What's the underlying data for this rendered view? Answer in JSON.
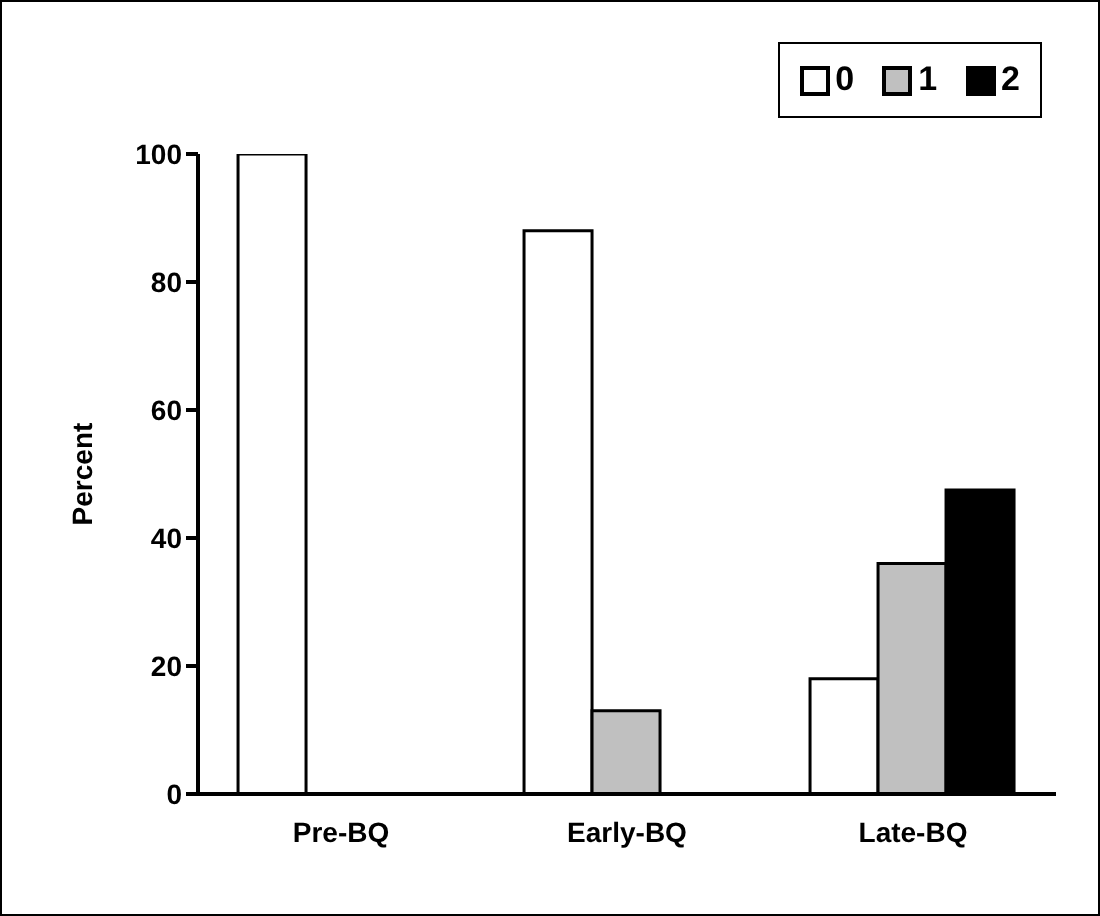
{
  "chart_data": {
    "type": "bar",
    "ylabel": "Percent",
    "categories": [
      "Pre-BQ",
      "Early-BQ",
      "Late-BQ"
    ],
    "series": [
      {
        "name": "0",
        "color": "#ffffff",
        "values": [
          100,
          88,
          18
        ]
      },
      {
        "name": "1",
        "color": "#c0c0c0",
        "values": [
          0,
          13,
          36
        ]
      },
      {
        "name": "2",
        "color": "#000000",
        "values": [
          0,
          0,
          47.5
        ]
      }
    ],
    "ylim": [
      0,
      100
    ],
    "yticks": [
      0,
      20,
      40,
      60,
      80,
      100
    ],
    "grid": false,
    "legend": "top right"
  }
}
